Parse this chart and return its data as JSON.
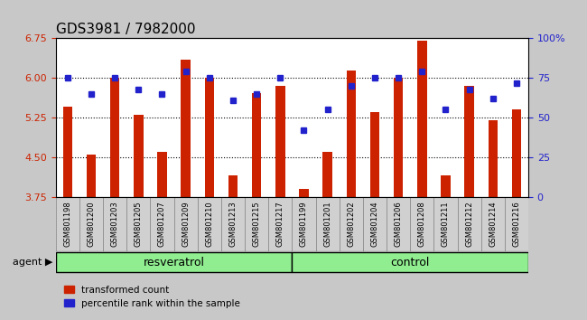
{
  "title": "GDS3981 / 7982000",
  "categories": [
    "GSM801198",
    "GSM801200",
    "GSM801203",
    "GSM801205",
    "GSM801207",
    "GSM801209",
    "GSM801210",
    "GSM801213",
    "GSM801215",
    "GSM801217",
    "GSM801199",
    "GSM801201",
    "GSM801202",
    "GSM801204",
    "GSM801206",
    "GSM801208",
    "GSM801211",
    "GSM801212",
    "GSM801214",
    "GSM801216"
  ],
  "bar_values": [
    5.45,
    4.55,
    6.0,
    5.3,
    4.6,
    6.35,
    6.0,
    4.15,
    5.72,
    5.85,
    3.9,
    4.6,
    6.15,
    5.35,
    6.0,
    6.7,
    4.15,
    5.85,
    5.2,
    5.4
  ],
  "dot_values_pct": [
    75,
    65,
    75,
    68,
    65,
    79,
    75,
    61,
    65,
    75,
    42,
    55,
    70,
    75,
    75,
    79,
    55,
    68,
    62,
    72
  ],
  "group_sizes": [
    10,
    10
  ],
  "bar_color": "#cc2200",
  "dot_color": "#2222cc",
  "ylim": [
    3.75,
    6.75
  ],
  "yticks": [
    3.75,
    4.5,
    5.25,
    6.0,
    6.75
  ],
  "y2lim": [
    0,
    100
  ],
  "y2ticks": [
    0,
    25,
    50,
    75,
    100
  ],
  "bar_width": 0.4,
  "fig_bg": "#c8c8c8",
  "plot_bg": "#ffffff",
  "cell_bg": "#d0d0d0",
  "green_bg": "#90ee90",
  "title_fontsize": 11,
  "tick_label_fontsize": 6
}
